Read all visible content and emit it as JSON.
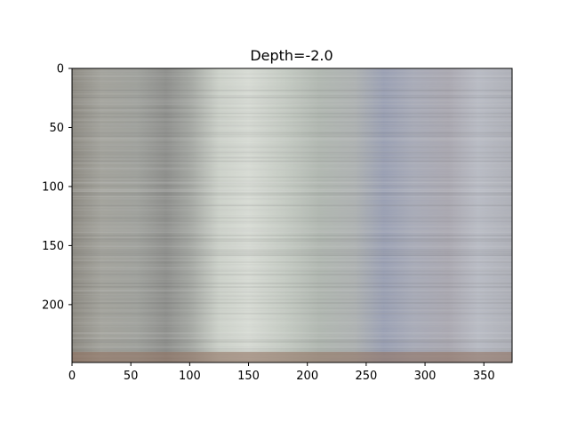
{
  "chart_data": {
    "type": "heatmap",
    "title": "Depth=-2.0",
    "xlabel": "",
    "ylabel": "",
    "xlim": [
      0,
      374
    ],
    "ylim": [
      249,
      0
    ],
    "y_axis_inverted": true,
    "x_ticks": [
      0,
      50,
      100,
      150,
      200,
      250,
      300,
      350
    ],
    "y_ticks": [
      0,
      50,
      100,
      150,
      200
    ],
    "grid": false,
    "legend": "none",
    "image_description": "RGB image rendered with imshow; colors vary mainly along x with fine horizontal streaks along y",
    "column_color_profile": [
      {
        "x": 0,
        "color": "#8d8a82"
      },
      {
        "x": 25,
        "color": "#a3a39c"
      },
      {
        "x": 55,
        "color": "#9fa19c"
      },
      {
        "x": 80,
        "color": "#8e8f8c"
      },
      {
        "x": 100,
        "color": "#a3a6a1"
      },
      {
        "x": 125,
        "color": "#cdd2ca"
      },
      {
        "x": 150,
        "color": "#d8dcd5"
      },
      {
        "x": 180,
        "color": "#c6ccc4"
      },
      {
        "x": 210,
        "color": "#b1b8b1"
      },
      {
        "x": 240,
        "color": "#aeb2b2"
      },
      {
        "x": 265,
        "color": "#9aa0b4"
      },
      {
        "x": 290,
        "color": "#a8abb8"
      },
      {
        "x": 320,
        "color": "#aaa8b1"
      },
      {
        "x": 345,
        "color": "#b9bcc5"
      },
      {
        "x": 374,
        "color": "#aeb0b8"
      }
    ],
    "bottom_band": {
      "y_from": 240,
      "y_to": 249,
      "color": "#8a6a57"
    }
  }
}
